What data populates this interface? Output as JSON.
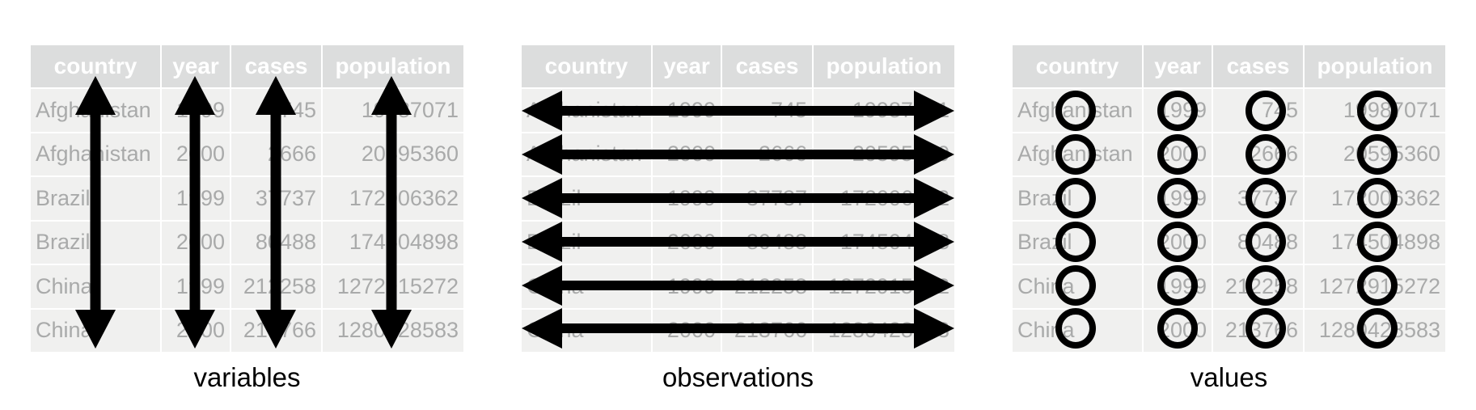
{
  "columns": [
    "country",
    "year",
    "cases",
    "population"
  ],
  "rows": [
    [
      "Afghanistan",
      "1999",
      "745",
      "19987071"
    ],
    [
      "Afghanistan",
      "2000",
      "2666",
      "20595360"
    ],
    [
      "Brazil",
      "1999",
      "37737",
      "172006362"
    ],
    [
      "Brazil",
      "2000",
      "80488",
      "174504898"
    ],
    [
      "China",
      "1999",
      "212258",
      "1272915272"
    ],
    [
      "China",
      "2000",
      "213766",
      "1280428583"
    ]
  ],
  "captions": {
    "variables": "variables",
    "observations": "observations",
    "values": "values"
  },
  "colors": {
    "header_bg": "#dcdddd",
    "cell_bg": "#f0f0ef",
    "cell_text": "#a9aaaa",
    "mark": "#000000"
  }
}
